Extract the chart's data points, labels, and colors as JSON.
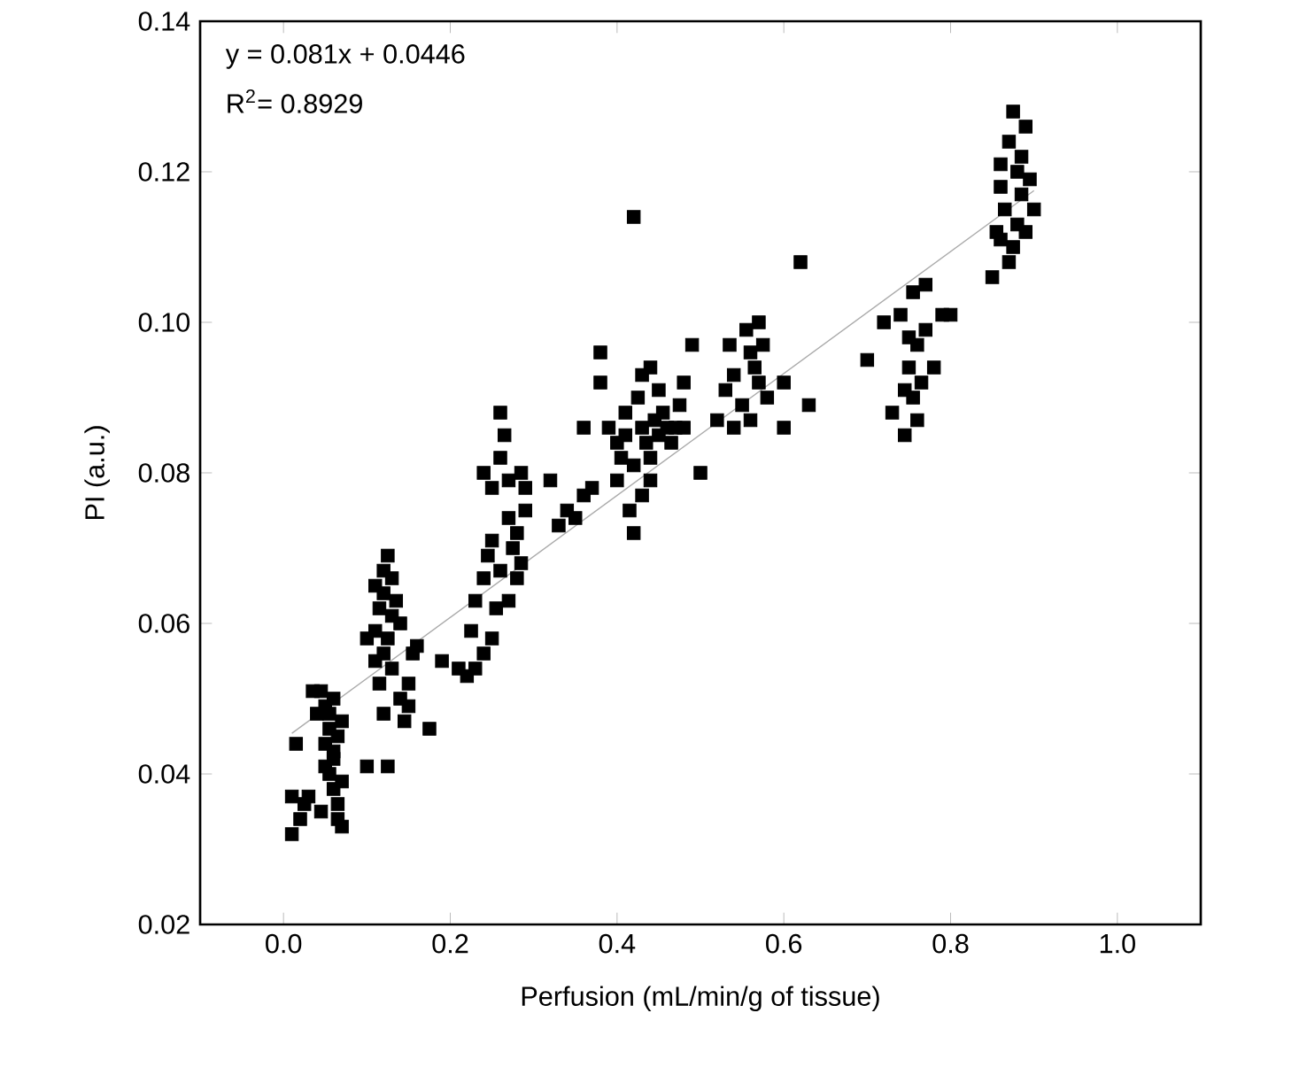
{
  "chart_data": {
    "type": "scatter",
    "xlabel": "Perfusion (mL/min/g of tissue)",
    "ylabel": "PI (a.u.)",
    "xlim": [
      -0.1,
      1.1
    ],
    "xticks": [
      {
        "value": 0,
        "label": "0.0"
      },
      0.2,
      0.4,
      0.6,
      0.8,
      {
        "value": 1,
        "label": "1.0"
      }
    ],
    "ylim": [
      0.02,
      0.14
    ],
    "yticks": [
      0.02,
      0.04,
      0.06,
      0.08,
      {
        "value": 0.1,
        "label": "0.10"
      },
      0.12,
      0.14
    ],
    "marker": "square",
    "annotations": [
      "y = 0.081x + 0.0446",
      "R$^{2}$= 0.8929"
    ],
    "series": [
      {
        "color": "#000000",
        "x": [
          0.01,
          0.01,
          0.015,
          0.02,
          0.025,
          0.03,
          0.04,
          0.045,
          0.05,
          0.055,
          0.05,
          0.06,
          0.055,
          0.06,
          0.065,
          0.065,
          0.07,
          0.06,
          0.065,
          0.07,
          0.045,
          0.05,
          0.06,
          0.07,
          0.055,
          0.035,
          0.1,
          0.11,
          0.11,
          0.115,
          0.12,
          0.12,
          0.125,
          0.13,
          0.13,
          0.125,
          0.12,
          0.115,
          0.12,
          0.125,
          0.13,
          0.14,
          0.14,
          0.15,
          0.15,
          0.155,
          0.16,
          0.145,
          0.135,
          0.11,
          0.1,
          0.175,
          0.19,
          0.21,
          0.22,
          0.225,
          0.23,
          0.24,
          0.245,
          0.25,
          0.24,
          0.25,
          0.26,
          0.26,
          0.265,
          0.27,
          0.27,
          0.275,
          0.28,
          0.28,
          0.285,
          0.29,
          0.285,
          0.27,
          0.25,
          0.255,
          0.26,
          0.24,
          0.29,
          0.23,
          0.32,
          0.33,
          0.34,
          0.35,
          0.36,
          0.37,
          0.38,
          0.38,
          0.36,
          0.39,
          0.4,
          0.4,
          0.405,
          0.41,
          0.41,
          0.415,
          0.42,
          0.42,
          0.42,
          0.425,
          0.43,
          0.43,
          0.435,
          0.44,
          0.44,
          0.445,
          0.45,
          0.455,
          0.46,
          0.465,
          0.47,
          0.44,
          0.43,
          0.45,
          0.48,
          0.49,
          0.5,
          0.48,
          0.475,
          0.53,
          0.535,
          0.54,
          0.55,
          0.555,
          0.56,
          0.565,
          0.57,
          0.57,
          0.575,
          0.58,
          0.56,
          0.52,
          0.54,
          0.6,
          0.6,
          0.62,
          0.63,
          0.7,
          0.72,
          0.73,
          0.74,
          0.745,
          0.75,
          0.75,
          0.755,
          0.755,
          0.76,
          0.76,
          0.765,
          0.77,
          0.77,
          0.78,
          0.79,
          0.8,
          0.745,
          0.85,
          0.855,
          0.86,
          0.86,
          0.865,
          0.87,
          0.875,
          0.875,
          0.88,
          0.88,
          0.885,
          0.89,
          0.89,
          0.895,
          0.9,
          0.87,
          0.885,
          0.86
        ],
        "values": [
          0.032,
          0.037,
          0.044,
          0.034,
          0.036,
          0.037,
          0.048,
          0.051,
          0.049,
          0.046,
          0.044,
          0.042,
          0.04,
          0.038,
          0.036,
          0.034,
          0.033,
          0.05,
          0.045,
          0.047,
          0.035,
          0.041,
          0.043,
          0.039,
          0.048,
          0.051,
          0.041,
          0.055,
          0.059,
          0.062,
          0.064,
          0.067,
          0.069,
          0.066,
          0.061,
          0.058,
          0.056,
          0.052,
          0.048,
          0.041,
          0.054,
          0.06,
          0.05,
          0.049,
          0.052,
          0.056,
          0.057,
          0.047,
          0.063,
          0.065,
          0.058,
          0.046,
          0.055,
          0.054,
          0.053,
          0.059,
          0.063,
          0.066,
          0.069,
          0.071,
          0.08,
          0.078,
          0.082,
          0.088,
          0.085,
          0.074,
          0.079,
          0.07,
          0.072,
          0.066,
          0.068,
          0.075,
          0.08,
          0.063,
          0.058,
          0.062,
          0.067,
          0.056,
          0.078,
          0.054,
          0.079,
          0.073,
          0.075,
          0.074,
          0.077,
          0.078,
          0.096,
          0.092,
          0.086,
          0.086,
          0.084,
          0.079,
          0.082,
          0.085,
          0.088,
          0.075,
          0.072,
          0.081,
          0.114,
          0.09,
          0.093,
          0.086,
          0.084,
          0.082,
          0.079,
          0.087,
          0.085,
          0.088,
          0.086,
          0.084,
          0.086,
          0.094,
          0.077,
          0.091,
          0.092,
          0.097,
          0.08,
          0.086,
          0.089,
          0.091,
          0.097,
          0.093,
          0.089,
          0.099,
          0.096,
          0.094,
          0.092,
          0.1,
          0.097,
          0.09,
          0.087,
          0.087,
          0.086,
          0.092,
          0.086,
          0.108,
          0.089,
          0.095,
          0.1,
          0.088,
          0.101,
          0.091,
          0.098,
          0.094,
          0.09,
          0.104,
          0.097,
          0.087,
          0.092,
          0.099,
          0.105,
          0.094,
          0.101,
          0.101,
          0.085,
          0.106,
          0.112,
          0.118,
          0.121,
          0.115,
          0.124,
          0.128,
          0.11,
          0.12,
          0.113,
          0.117,
          0.126,
          0.112,
          0.119,
          0.115,
          0.108,
          0.122,
          0.111
        ]
      },
      {
        "type": "line",
        "color": "#aaaaaa",
        "marker": "none",
        "x": [
          0.01,
          0.9
        ],
        "values": [
          0.0454,
          0.1175
        ]
      }
    ]
  }
}
